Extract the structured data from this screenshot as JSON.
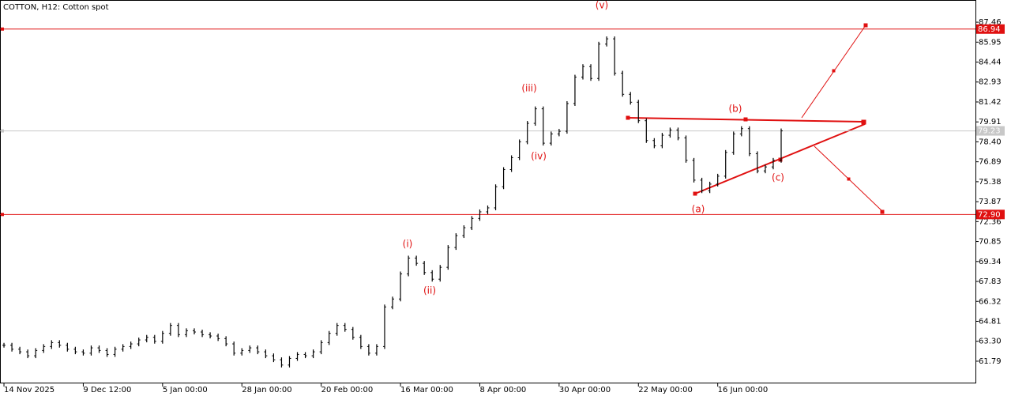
{
  "chart_data": {
    "type": "ohlc",
    "title": "COTTON, H12:  Cotton spot",
    "color": "#000000",
    "ylim": [
      60.11,
      89.14
    ],
    "yticks": [
      87.46,
      85.95,
      84.44,
      82.93,
      81.42,
      79.91,
      {
        "value": 78.4,
        "label": "78.40"
      },
      76.89,
      75.38,
      73.87,
      72.36,
      70.85,
      69.34,
      67.83,
      66.32,
      64.81,
      {
        "value": 63.3,
        "label": "63.30"
      },
      61.79
    ],
    "xlim": [
      -0.5,
      122.5
    ],
    "xticks": [
      {
        "value": 0,
        "label": "14 Nov 2025"
      },
      {
        "value": 10,
        "label": "9 Dec 12:00"
      },
      {
        "value": 20,
        "label": "5 Jan 00:00"
      },
      {
        "value": 30,
        "label": "28 Jan 00:00"
      },
      {
        "value": 40,
        "label": "20 Feb 00:00"
      },
      {
        "value": 50,
        "label": "16 Mar 00:00"
      },
      {
        "value": 60,
        "label": "8 Apr 00:00"
      },
      {
        "value": 70,
        "label": "30 Apr 00:00"
      },
      {
        "value": 80,
        "label": "22 May 00:00"
      },
      {
        "value": 90,
        "label": "16 Jun 00:00"
      }
    ],
    "values": [
      63.0,
      62.7,
      62.5,
      62.2,
      62.6,
      62.9,
      63.2,
      63.0,
      62.7,
      62.5,
      62.4,
      62.8,
      62.6,
      62.3,
      62.7,
      62.9,
      63.1,
      63.4,
      63.6,
      63.3,
      63.9,
      64.5,
      63.8,
      64.1,
      64.0,
      63.8,
      63.7,
      63.5,
      63.1,
      62.4,
      62.6,
      62.8,
      62.5,
      62.2,
      61.9,
      61.5,
      62.0,
      62.3,
      62.2,
      62.5,
      63.2,
      63.9,
      64.5,
      64.2,
      63.6,
      62.9,
      62.4,
      62.9,
      65.9,
      66.5,
      68.4,
      69.6,
      69.2,
      68.5,
      68.0,
      68.9,
      70.4,
      71.3,
      71.9,
      72.6,
      73.1,
      73.4,
      75.0,
      76.3,
      77.2,
      78.4,
      79.8,
      80.9,
      78.3,
      79.0,
      79.2,
      81.3,
      83.3,
      84.1,
      83.2,
      85.8,
      86.2,
      83.6,
      82.0,
      81.4,
      80.0,
      78.5,
      78.1,
      78.9,
      79.3,
      78.7,
      77.0,
      75.5,
      74.7,
      75.2,
      75.8,
      77.6,
      79.0,
      79.4,
      77.5,
      76.2,
      76.5,
      77.0,
      79.23
    ],
    "hlines": [
      {
        "value": 86.94,
        "color": "#e01010"
      },
      {
        "value": 72.9,
        "label": "72.90",
        "color": "#e01010"
      },
      {
        "value": 79.23,
        "color": "#c8c8c8"
      }
    ],
    "annotations": [
      "(i)",
      "(ii)",
      "(iii)",
      "(iv)",
      "(v)",
      "(a)",
      "(b)",
      "(c)"
    ],
    "annotation_color": "#e01010",
    "grid": false
  }
}
